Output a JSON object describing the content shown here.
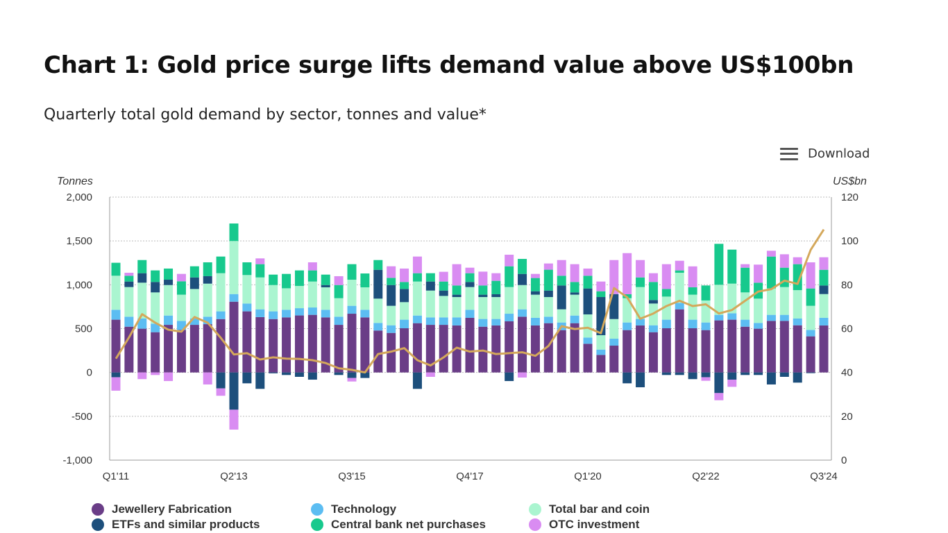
{
  "header": {
    "title": "Chart 1: Gold price surge lifts demand value above US$100bn",
    "subtitle": "Quarterly total gold demand by sector, tonnes and value*",
    "download_label": "Download",
    "download_icon": "hamburger-menu-icon"
  },
  "chart_data": {
    "type": "bar",
    "stacked": true,
    "title": "Chart 1: Gold price surge lifts demand value above US$100bn",
    "subtitle": "Quarterly total gold demand by sector, tonnes and value*",
    "ylabel": "Tonnes",
    "y2label": "US$bn",
    "ylim": [
      -1000,
      2000
    ],
    "y2lim": [
      0,
      120
    ],
    "yticks": [
      "2,000",
      "1,500",
      "1,000",
      "500",
      "0",
      "-500",
      "-1,000"
    ],
    "y2ticks": [
      "120",
      "100",
      "80",
      "60",
      "40",
      "20",
      "0"
    ],
    "x_tick_labels": [
      "Q1'11",
      "Q2'13",
      "Q3'15",
      "Q4'17",
      "Q1'20",
      "Q2'22",
      "Q3'24"
    ],
    "grid": true,
    "legend_placement": "bottom",
    "categories": [
      "Q1'11",
      "Q2'11",
      "Q3'11",
      "Q4'11",
      "Q1'12",
      "Q2'12",
      "Q3'12",
      "Q4'12",
      "Q1'13",
      "Q2'13",
      "Q3'13",
      "Q4'13",
      "Q1'14",
      "Q2'14",
      "Q3'14",
      "Q4'14",
      "Q1'15",
      "Q2'15",
      "Q3'15",
      "Q4'15",
      "Q1'16",
      "Q2'16",
      "Q3'16",
      "Q4'16",
      "Q1'17",
      "Q2'17",
      "Q3'17",
      "Q4'17",
      "Q1'18",
      "Q2'18",
      "Q3'18",
      "Q4'18",
      "Q1'19",
      "Q2'19",
      "Q3'19",
      "Q4'19",
      "Q1'20",
      "Q2'20",
      "Q3'20",
      "Q4'20",
      "Q1'21",
      "Q2'21",
      "Q3'21",
      "Q4'21",
      "Q1'22",
      "Q2'22",
      "Q3'22",
      "Q4'22",
      "Q1'23",
      "Q2'23",
      "Q3'23",
      "Q4'23",
      "Q1'24",
      "Q2'24",
      "Q3'24"
    ],
    "series": [
      {
        "name": "Jewellery Fabrication",
        "color": "#6a3d87",
        "values": [
          602,
          522,
          499,
          459,
          543,
          485,
          543,
          551,
          609,
          807,
          697,
          631,
          609,
          628,
          650,
          657,
          628,
          543,
          670,
          628,
          478,
          451,
          504,
          562,
          543,
          543,
          536,
          623,
          522,
          536,
          583,
          636,
          536,
          562,
          483,
          562,
          327,
          200,
          306,
          483,
          536,
          459,
          504,
          720,
          504,
          483,
          594,
          602,
          522,
          499,
          588,
          588,
          538,
          412,
          536
        ]
      },
      {
        "name": "Technology",
        "color": "#5cbdf2",
        "values": [
          113,
          114,
          116,
          98,
          106,
          103,
          74,
          85,
          88,
          87,
          89,
          89,
          88,
          87,
          83,
          84,
          87,
          93,
          90,
          87,
          87,
          87,
          98,
          87,
          85,
          85,
          92,
          92,
          88,
          74,
          87,
          84,
          87,
          74,
          87,
          87,
          71,
          61,
          79,
          87,
          74,
          79,
          98,
          74,
          98,
          87,
          63,
          73,
          80,
          66,
          69,
          69,
          77,
          73,
          87
        ]
      },
      {
        "name": "Total bar and coin",
        "color": "#aaf5d0",
        "values": [
          388,
          338,
          409,
          356,
          348,
          299,
          335,
          377,
          435,
          605,
          325,
          364,
          300,
          245,
          254,
          296,
          256,
          211,
          298,
          256,
          277,
          222,
          200,
          388,
          306,
          245,
          232,
          259,
          250,
          250,
          304,
          277,
          264,
          224,
          150,
          238,
          264,
          164,
          224,
          277,
          364,
          248,
          263,
          343,
          285,
          251,
          343,
          338,
          311,
          277,
          301,
          317,
          324,
          275,
          271
        ]
      },
      {
        "name": "ETFs and similar products",
        "color": "#1d4f7c",
        "values": [
          -55,
          63,
          108,
          119,
          61,
          0,
          132,
          85,
          -182,
          -425,
          -124,
          -187,
          -10,
          -29,
          -50,
          -82,
          26,
          -29,
          -63,
          -63,
          329,
          237,
          150,
          -187,
          103,
          61,
          27,
          58,
          27,
          32,
          -98,
          127,
          39,
          74,
          272,
          26,
          296,
          435,
          285,
          -124,
          -169,
          40,
          -29,
          -29,
          -76,
          -55,
          -235,
          -82,
          -29,
          -29,
          -137,
          -50,
          -116,
          -8,
          98
        ]
      },
      {
        "name": "Central bank net purchases",
        "color": "#17c98d",
        "values": [
          148,
          66,
          150,
          132,
          127,
          153,
          127,
          158,
          190,
          200,
          145,
          151,
          119,
          164,
          177,
          127,
          119,
          150,
          177,
          158,
          111,
          82,
          80,
          95,
          95,
          103,
          105,
          100,
          105,
          153,
          237,
          171,
          151,
          238,
          111,
          119,
          145,
          66,
          0,
          45,
          110,
          206,
          87,
          27,
          85,
          171,
          467,
          388,
          282,
          182,
          364,
          221,
          296,
          198,
          179
        ]
      },
      {
        "name": "OTC investment",
        "color": "#d98cf2",
        "values": [
          -153,
          34,
          -76,
          -29,
          -98,
          84,
          0,
          -137,
          -84,
          -227,
          0,
          66,
          0,
          0,
          0,
          92,
          0,
          101,
          -40,
          0,
          0,
          132,
          153,
          190,
          -50,
          111,
          243,
          63,
          158,
          87,
          132,
          -58,
          47,
          71,
          179,
          203,
          82,
          111,
          388,
          469,
          198,
          100,
          283,
          110,
          238,
          -40,
          -82,
          -82,
          40,
          206,
          66,
          153,
          79,
          298,
          143
        ]
      }
    ],
    "line_series": {
      "axis": "right",
      "color": "#d4a85b",
      "values": [
        46.3,
        56,
        66.6,
        62.7,
        59.5,
        58.6,
        65.3,
        62.7,
        55.8,
        48.2,
        48.8,
        45.9,
        46.9,
        46.3,
        46.2,
        45.6,
        44.3,
        41.9,
        41.2,
        40.0,
        48.4,
        49.5,
        51.1,
        45.6,
        43.2,
        46.9,
        51.3,
        49.5,
        50.0,
        48.4,
        48.8,
        49.2,
        47.6,
        52.1,
        61.1,
        59.8,
        60.4,
        57.9,
        78.5,
        74.3,
        64.5,
        66.9,
        70.3,
        72.7,
        70.3,
        71.1,
        66.9,
        68.5,
        72.7,
        76.9,
        78.0,
        81.9,
        80.4,
        95.9,
        105.2
      ]
    }
  }
}
